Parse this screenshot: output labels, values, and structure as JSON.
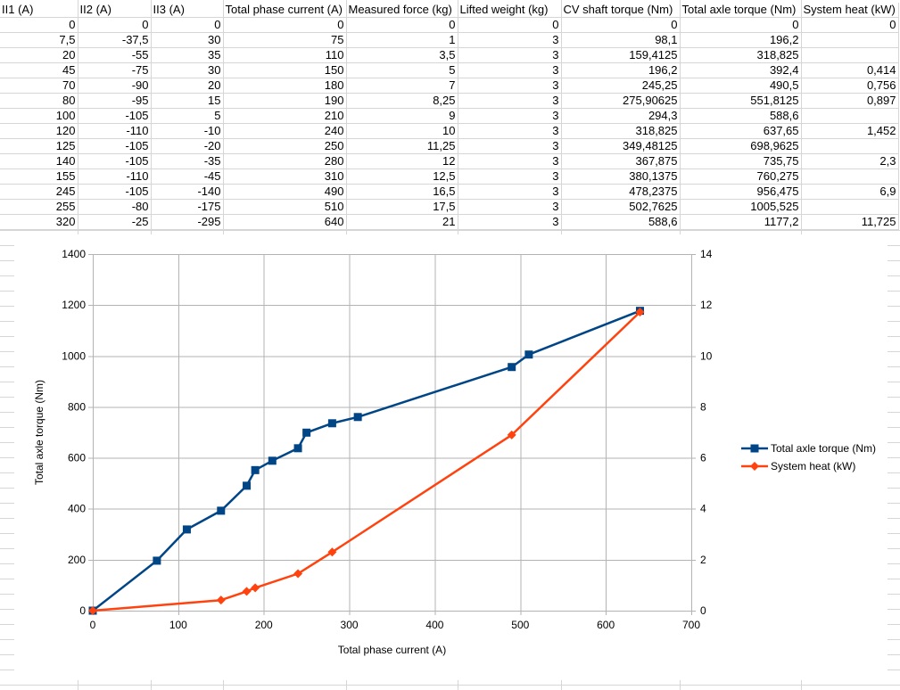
{
  "table": {
    "headers": [
      "II1 (A)",
      "II2 (A)",
      "II3 (A)",
      "Total phase current (A)",
      "Measured force (kg)",
      "Lifted weight (kg)",
      "CV shaft torque (Nm)",
      "Total axle torque (Nm)",
      "System heat (kW)"
    ],
    "rows": [
      [
        "0",
        "0",
        "0",
        "0",
        "0",
        "0",
        "0",
        "0",
        "0"
      ],
      [
        "7,5",
        "-37,5",
        "30",
        "75",
        "1",
        "3",
        "98,1",
        "196,2",
        ""
      ],
      [
        "20",
        "-55",
        "35",
        "110",
        "3,5",
        "3",
        "159,4125",
        "318,825",
        ""
      ],
      [
        "45",
        "-75",
        "30",
        "150",
        "5",
        "3",
        "196,2",
        "392,4",
        "0,414"
      ],
      [
        "70",
        "-90",
        "20",
        "180",
        "7",
        "3",
        "245,25",
        "490,5",
        "0,756"
      ],
      [
        "80",
        "-95",
        "15",
        "190",
        "8,25",
        "3",
        "275,90625",
        "551,8125",
        "0,897"
      ],
      [
        "100",
        "-105",
        "5",
        "210",
        "9",
        "3",
        "294,3",
        "588,6",
        ""
      ],
      [
        "120",
        "-110",
        "-10",
        "240",
        "10",
        "3",
        "318,825",
        "637,65",
        "1,452"
      ],
      [
        "125",
        "-105",
        "-20",
        "250",
        "11,25",
        "3",
        "349,48125",
        "698,9625",
        ""
      ],
      [
        "140",
        "-105",
        "-35",
        "280",
        "12",
        "3",
        "367,875",
        "735,75",
        "2,3"
      ],
      [
        "155",
        "-110",
        "-45",
        "310",
        "12,5",
        "3",
        "380,1375",
        "760,275",
        ""
      ],
      [
        "245",
        "-105",
        "-140",
        "490",
        "16,5",
        "3",
        "478,2375",
        "956,475",
        "6,9"
      ],
      [
        "255",
        "-80",
        "-175",
        "510",
        "17,5",
        "3",
        "502,7625",
        "1005,525",
        ""
      ],
      [
        "320",
        "-25",
        "-295",
        "640",
        "21",
        "3",
        "588,6",
        "1177,2",
        "11,725"
      ]
    ]
  },
  "chart_data": {
    "type": "line",
    "title": "",
    "xlabel": "Total phase current (A)",
    "ylabel": "Total axle torque (Nm)",
    "y2label": "",
    "xlim": [
      0,
      700
    ],
    "ylim": [
      0,
      1400
    ],
    "y2lim": [
      0,
      14
    ],
    "xticks": [
      0,
      100,
      200,
      300,
      400,
      500,
      600,
      700
    ],
    "yticks": [
      0,
      200,
      400,
      600,
      800,
      1000,
      1200,
      1400
    ],
    "y2ticks": [
      0,
      2,
      4,
      6,
      8,
      10,
      12,
      14
    ],
    "grid": true,
    "legend_position": "right",
    "series": [
      {
        "name": "Total axle torque (Nm)",
        "axis": "left",
        "color": "#004586",
        "marker": "square",
        "x": [
          0,
          75,
          110,
          150,
          180,
          190,
          210,
          240,
          250,
          280,
          310,
          490,
          510,
          640
        ],
        "y": [
          0,
          196.2,
          318.825,
          392.4,
          490.5,
          551.8125,
          588.6,
          637.65,
          698.9625,
          735.75,
          760.275,
          956.475,
          1005.525,
          1177.2
        ]
      },
      {
        "name": "System heat (kW)",
        "axis": "right",
        "color": "#ff420e",
        "marker": "diamond",
        "x": [
          0,
          150,
          180,
          190,
          240,
          280,
          490,
          640
        ],
        "y": [
          0,
          0.414,
          0.756,
          0.897,
          1.452,
          2.3,
          6.9,
          11.725
        ]
      }
    ]
  }
}
